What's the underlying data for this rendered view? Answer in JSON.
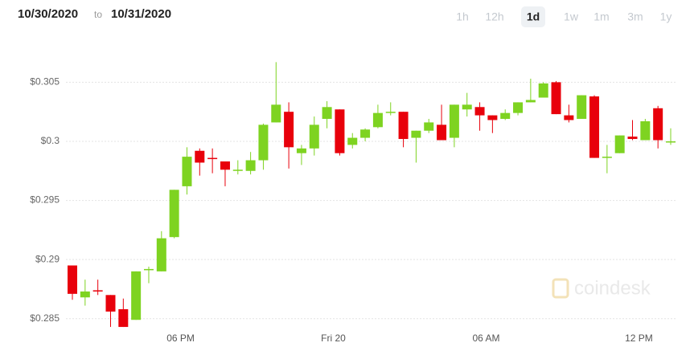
{
  "header": {
    "from": "10/30/2020",
    "to_word": "to",
    "to": "10/31/2020"
  },
  "range_buttons": [
    "1h",
    "12h",
    "1d",
    "1w",
    "1m",
    "3m",
    "1y"
  ],
  "selected": "1d",
  "chart_data": {
    "type": "candlestick",
    "watermark": "coindesk",
    "categories": [
      null,
      null,
      null,
      null,
      null,
      null,
      null,
      null,
      null,
      "06 PM",
      null,
      null,
      null,
      null,
      null,
      null,
      null,
      null,
      null,
      null,
      null,
      "Fri 20",
      null,
      null,
      null,
      null,
      null,
      null,
      null,
      null,
      null,
      null,
      null,
      "06 AM",
      null,
      null,
      null,
      null,
      null,
      null,
      null,
      null,
      null,
      null,
      null,
      "12 PM",
      null,
      null
    ],
    "open": [
      0.2895,
      0.2868,
      0.2874,
      0.287,
      0.2858,
      0.2849,
      0.2891,
      0.289,
      0.2919,
      0.2962,
      0.2992,
      0.2986,
      0.2983,
      0.2975,
      0.2975,
      0.2984,
      0.3016,
      0.3025,
      0.299,
      0.2994,
      0.3019,
      0.3027,
      0.2997,
      0.3003,
      0.3012,
      0.3024,
      0.3025,
      0.3003,
      0.3009,
      0.3014,
      0.3003,
      0.3027,
      0.3029,
      0.3022,
      0.3019,
      0.3024,
      0.3033,
      0.3037,
      0.305,
      0.3022,
      0.3019,
      0.3038,
      0.2986,
      0.299,
      0.3004,
      0.3001,
      0.3028,
      0.2999
    ],
    "high": [
      0.2895,
      0.2883,
      0.2883,
      0.287,
      0.2867,
      0.289,
      0.2894,
      0.2924,
      0.2959,
      0.2995,
      0.2994,
      0.2994,
      0.2983,
      0.2984,
      0.2991,
      0.3015,
      0.3067,
      0.3033,
      0.2997,
      0.3021,
      0.3034,
      0.3027,
      0.3007,
      0.3011,
      0.3031,
      0.3033,
      0.3025,
      0.3009,
      0.3019,
      0.3031,
      0.3031,
      0.3041,
      0.3033,
      0.3022,
      0.3027,
      0.3033,
      0.3053,
      0.305,
      0.3051,
      0.3031,
      0.3039,
      0.3039,
      0.2997,
      0.3005,
      0.3018,
      0.3019,
      0.303,
      0.3011
    ],
    "low": [
      0.2866,
      0.2861,
      0.287,
      0.2843,
      0.2843,
      0.2849,
      0.288,
      0.289,
      0.2918,
      0.2955,
      0.2971,
      0.2973,
      0.2962,
      0.2972,
      0.2972,
      0.2976,
      0.3016,
      0.2977,
      0.298,
      0.2988,
      0.3011,
      0.2988,
      0.2994,
      0.3,
      0.3011,
      0.3022,
      0.2995,
      0.2982,
      0.3007,
      0.3001,
      0.2995,
      0.3021,
      0.3009,
      0.3007,
      0.3018,
      0.3022,
      0.3033,
      0.3037,
      0.3023,
      0.3016,
      0.3019,
      0.2986,
      0.2973,
      0.299,
      0.3001,
      0.3001,
      0.2994,
      0.2997
    ],
    "close": [
      0.2871,
      0.2873,
      0.2873,
      0.2856,
      0.2843,
      0.289,
      0.2892,
      0.2918,
      0.2959,
      0.2987,
      0.2982,
      0.2985,
      0.2976,
      0.2976,
      0.2984,
      0.3014,
      0.3031,
      0.2995,
      0.2994,
      0.3014,
      0.3029,
      0.299,
      0.3003,
      0.301,
      0.3024,
      0.3025,
      0.3002,
      0.3009,
      0.3016,
      0.3001,
      0.3031,
      0.3031,
      0.3022,
      0.3018,
      0.3024,
      0.3033,
      0.3035,
      0.3049,
      0.3023,
      0.3018,
      0.3039,
      0.2986,
      0.2987,
      0.3005,
      0.3002,
      0.3017,
      0.3001,
      0.3
    ],
    "up_color": "#7ed321",
    "down_color": "#e8000b",
    "ylim": [
      0.2841,
      0.3072
    ],
    "yticks": [
      {
        "value": 0.285,
        "label": "$0.285"
      },
      {
        "value": 0.29,
        "label": "$0.29"
      },
      {
        "value": 0.295,
        "label": "$0.295"
      },
      {
        "value": 0.3,
        "label": "$0.3"
      },
      {
        "value": 0.305,
        "label": "$0.305"
      }
    ],
    "grid": true
  }
}
